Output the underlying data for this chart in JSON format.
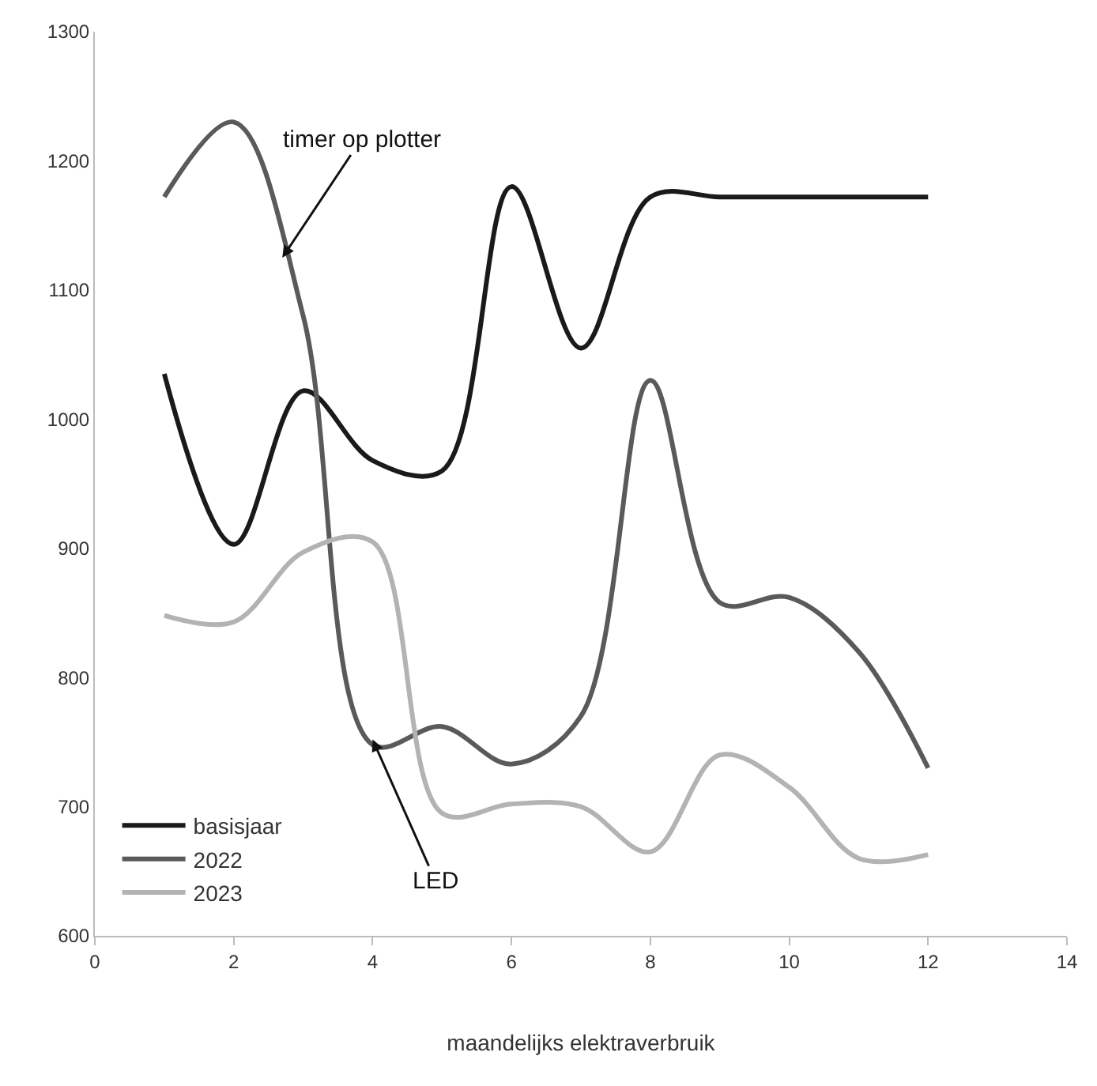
{
  "chart_data": {
    "type": "line",
    "xlabel": "maandelijks elektraverbruik",
    "x": [
      1,
      2,
      3,
      4,
      5,
      6,
      7,
      8,
      9,
      10,
      11,
      12
    ],
    "series": [
      {
        "name": "basisjaar",
        "color": "#1a1a1a",
        "values": [
          1035,
          903,
          1022,
          968,
          960,
          1180,
          1055,
          1172,
          1172,
          1172,
          1172,
          1172
        ]
      },
      {
        "name": "2022",
        "color": "#5a5a5a",
        "values": [
          1172,
          1230,
          1080,
          748,
          762,
          733,
          770,
          1030,
          858,
          862,
          820,
          730
        ]
      },
      {
        "name": "2023",
        "color": "#b3b3b3",
        "values": [
          848,
          843,
          897,
          905,
          695,
          702,
          700,
          665,
          740,
          715,
          660,
          663
        ]
      }
    ],
    "xlim": [
      0,
      14
    ],
    "xticks": [
      0,
      2,
      4,
      6,
      8,
      10,
      12,
      14
    ],
    "ylim": [
      600,
      1300
    ],
    "yticks": [
      600,
      700,
      800,
      900,
      1000,
      1100,
      1200,
      1300
    ],
    "legend": "bottom left",
    "marker": "none",
    "line_style": "solid",
    "annotations": [
      {
        "text": "timer op plotter",
        "x": 2.7,
        "y": 1125
      },
      {
        "text": "LED",
        "x": 4,
        "y": 752
      }
    ]
  }
}
